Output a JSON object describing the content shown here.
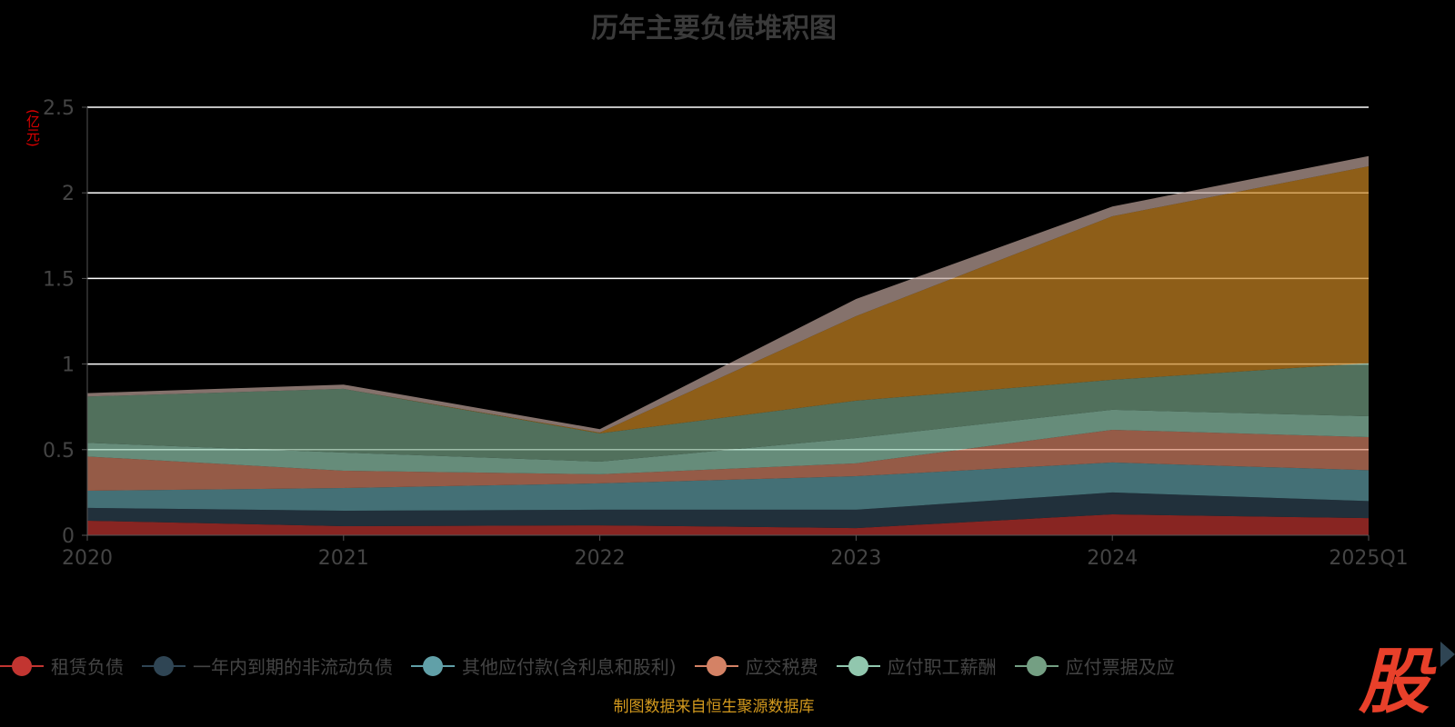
{
  "chart_data": {
    "type": "area",
    "stacked": true,
    "title": "历年主要负债堆积图",
    "ylabel": "(亿元)",
    "xlabel": "",
    "categories": [
      "2020",
      "2021",
      "2022",
      "2023",
      "2024",
      "2025Q1"
    ],
    "ylim": [
      0,
      2.5
    ],
    "yticks": [
      "0",
      "0.5",
      "1",
      "1.5",
      "2",
      "2.5"
    ],
    "yticks_values": [
      0,
      0.5,
      1,
      1.5,
      2,
      2.5
    ],
    "grid": true,
    "legend_position": "bottom",
    "series": [
      {
        "name": "租赁负债",
        "color": "#c23531",
        "values": [
          0.085,
          0.053,
          0.058,
          0.042,
          0.122,
          0.1
        ]
      },
      {
        "name": "一年内到期的非流动负债",
        "color": "#2f4554",
        "values": [
          0.075,
          0.09,
          0.091,
          0.107,
          0.128,
          0.1
        ]
      },
      {
        "name": "其他应付款(含利息和股利)",
        "color": "#61a0a8",
        "values": [
          0.1,
          0.133,
          0.154,
          0.196,
          0.175,
          0.18
        ]
      },
      {
        "name": "应交税费",
        "color": "#d48265",
        "values": [
          0.2,
          0.101,
          0.053,
          0.075,
          0.191,
          0.193
        ]
      },
      {
        "name": "应付职工薪酬",
        "color": "#91c7ae",
        "values": [
          0.08,
          0.106,
          0.074,
          0.148,
          0.117,
          0.122
        ]
      },
      {
        "name": "应付票据及应",
        "color": "#749f83",
        "values": [
          0.27,
          0.372,
          0.165,
          0.218,
          0.175,
          0.31
        ]
      },
      {
        "name": "",
        "color": "#ca8622",
        "values": [
          0,
          0,
          0.005,
          0.494,
          0.955,
          1.15
        ]
      },
      {
        "name": "",
        "color": "#bda29a",
        "values": [
          0.02,
          0.025,
          0.02,
          0.1,
          0.057,
          0.06
        ]
      }
    ]
  },
  "footer": {
    "source": "制图数据来自恒生聚源数据库",
    "logo": "股"
  }
}
